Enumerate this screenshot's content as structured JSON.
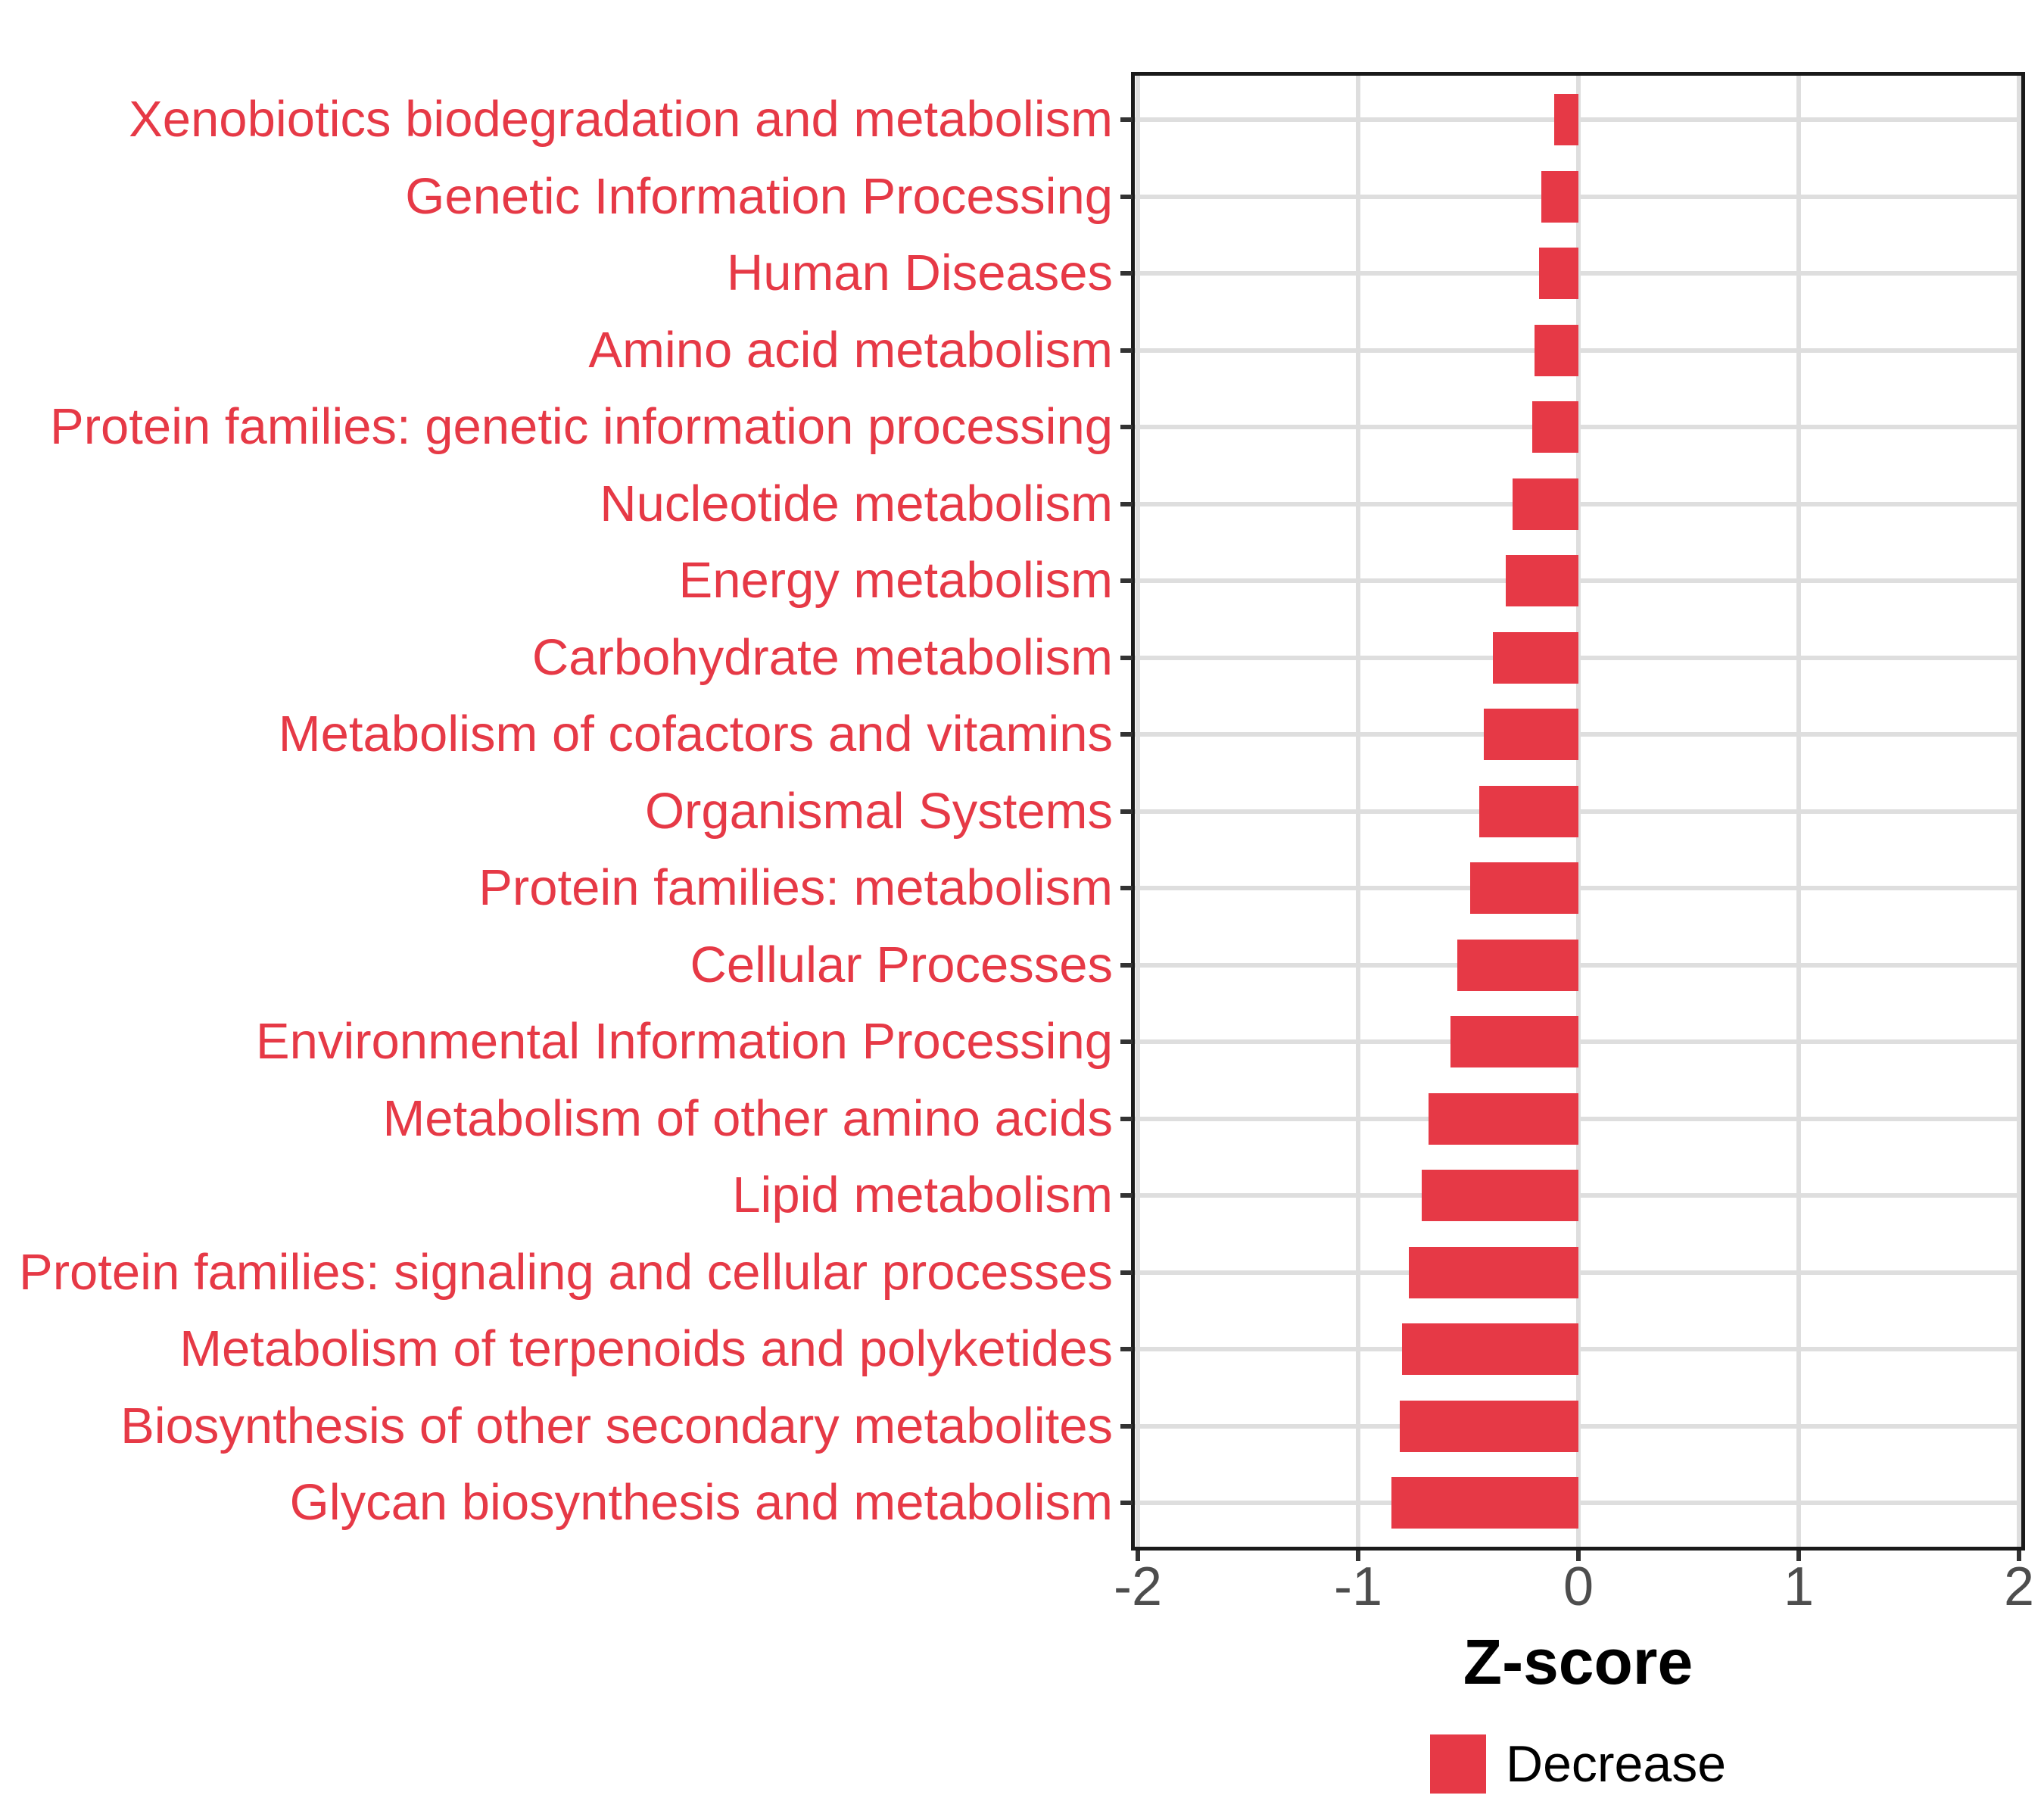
{
  "chart_data": {
    "type": "bar",
    "orientation": "horizontal",
    "title": "",
    "xlabel": "Z-score",
    "categories": [
      "Xenobiotics biodegradation and metabolism",
      "Genetic Information Processing",
      "Human Diseases",
      "Amino acid metabolism",
      "Protein families: genetic information processing",
      "Nucleotide metabolism",
      "Energy metabolism",
      "Carbohydrate metabolism",
      "Metabolism of cofactors and vitamins",
      "Organismal Systems",
      "Protein families: metabolism",
      "Cellular Processes",
      "Environmental Information Processing",
      "Metabolism of other amino acids",
      "Lipid metabolism",
      "Protein families: signaling and cellular processes",
      "Metabolism of terpenoids and polyketides",
      "Biosynthesis of other secondary metabolites",
      "Glycan biosynthesis and metabolism"
    ],
    "values": [
      -0.11,
      -0.17,
      -0.18,
      -0.2,
      -0.21,
      -0.3,
      -0.33,
      -0.39,
      -0.43,
      -0.45,
      -0.49,
      -0.55,
      -0.58,
      -0.68,
      -0.71,
      -0.77,
      -0.8,
      -0.81,
      -0.85
    ],
    "series_name": "Decrease",
    "xlim": [
      -2,
      2
    ],
    "x_ticks": [
      -2,
      -1,
      0,
      1,
      2
    ],
    "x_tick_labels": [
      "-2",
      "-1",
      "0",
      "1",
      "2"
    ],
    "grid": "major",
    "legend": {
      "position": "bottom",
      "entries": [
        {
          "label": "Decrease",
          "color": "#E63946"
        }
      ]
    },
    "bar_color": "#E63946",
    "category_label_color": "#E63946",
    "axis_text_color": "#4d4d4d",
    "gridline_color": "#dedede",
    "panel_border_color": "#1a1a1a"
  }
}
